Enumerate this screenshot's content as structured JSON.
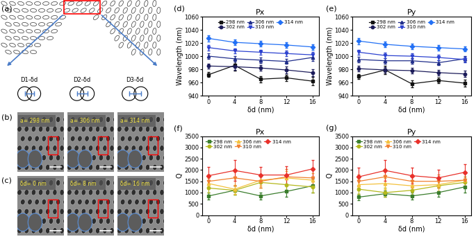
{
  "chart_data": [
    {
      "type": "line",
      "panel_label": "(d)",
      "title": "Px",
      "x_label": "δd (nm)",
      "y_label": "Wavelength (nm)",
      "x": [
        0,
        4,
        8,
        12,
        16
      ],
      "xlim": [
        -1,
        17
      ],
      "xticks": [
        0,
        4,
        8,
        12,
        16
      ],
      "ylim": [
        940,
        1060
      ],
      "yticks": [
        940,
        960,
        980,
        1000,
        1020,
        1040,
        1060
      ],
      "legend": "upper center",
      "grid": false,
      "series": [
        {
          "name": "298 nm",
          "color": "#111111",
          "marker": "square",
          "values": [
            972,
            986,
            965,
            967,
            962
          ],
          "errors": [
            4,
            8,
            5,
            5,
            6
          ]
        },
        {
          "name": "302 nm",
          "color": "#1c1c5a",
          "marker": "circle",
          "values": [
            985,
            984,
            982,
            979,
            975
          ],
          "errors": [
            4,
            5,
            4,
            5,
            5
          ]
        },
        {
          "name": "306 nm",
          "color": "#1f2d8a",
          "marker": "triangle_up",
          "values": [
            1000,
            996,
            994,
            992,
            998
          ],
          "errors": [
            4,
            4,
            4,
            4,
            5
          ]
        },
        {
          "name": "310 nm",
          "color": "#2c42d0",
          "marker": "triangle_down",
          "values": [
            1013,
            1008,
            1006,
            1004,
            1002
          ],
          "errors": [
            4,
            4,
            4,
            4,
            4
          ]
        },
        {
          "name": "314 nm",
          "color": "#2270f5",
          "marker": "diamond",
          "values": [
            1027,
            1021,
            1019,
            1017,
            1014
          ],
          "errors": [
            5,
            4,
            4,
            4,
            4
          ]
        }
      ]
    },
    {
      "type": "line",
      "panel_label": "(e)",
      "title": "Py",
      "x_label": "δd (nm)",
      "y_label": "Wavelength (nm)",
      "x": [
        0,
        4,
        8,
        12,
        16
      ],
      "xlim": [
        -1,
        17
      ],
      "xticks": [
        0,
        4,
        8,
        12,
        16
      ],
      "ylim": [
        940,
        1060
      ],
      "yticks": [
        940,
        960,
        980,
        1000,
        1020,
        1040,
        1060
      ],
      "legend": "upper center",
      "grid": false,
      "series": [
        {
          "name": "298 nm",
          "color": "#111111",
          "marker": "square",
          "values": [
            969,
            979,
            958,
            963,
            959
          ],
          "errors": [
            4,
            6,
            5,
            4,
            5
          ]
        },
        {
          "name": "302 nm",
          "color": "#1c1c5a",
          "marker": "circle",
          "values": [
            981,
            979,
            978,
            975,
            973
          ],
          "errors": [
            4,
            4,
            4,
            4,
            5
          ]
        },
        {
          "name": "306 nm",
          "color": "#1f2d8a",
          "marker": "triangle_up",
          "values": [
            995,
            993,
            993,
            990,
            996
          ],
          "errors": [
            4,
            4,
            4,
            4,
            4
          ]
        },
        {
          "name": "310 nm",
          "color": "#2c42d0",
          "marker": "triangle_down",
          "values": [
            1006,
            1001,
            1000,
            998,
            995
          ],
          "errors": [
            4,
            4,
            4,
            4,
            4
          ]
        },
        {
          "name": "314 nm",
          "color": "#2270f5",
          "marker": "diamond",
          "values": [
            1023,
            1018,
            1015,
            1013,
            1011
          ],
          "errors": [
            5,
            4,
            4,
            4,
            4
          ]
        }
      ]
    },
    {
      "type": "line",
      "panel_label": "(f)",
      "title": "Px",
      "x_label": "δd (nm)",
      "y_label": "Q",
      "x": [
        0,
        4,
        8,
        12,
        16
      ],
      "xlim": [
        -1,
        17
      ],
      "xticks": [
        0,
        4,
        8,
        12,
        16
      ],
      "ylim": [
        0,
        3500
      ],
      "yticks": [
        0,
        500,
        1000,
        1500,
        2000,
        2500,
        3000,
        3500
      ],
      "legend": "upper left",
      "grid": false,
      "series": [
        {
          "name": "298 nm",
          "color": "#3a7d2c",
          "marker": "square",
          "values": [
            850,
            1100,
            850,
            1050,
            1300
          ],
          "errors": [
            150,
            200,
            150,
            250,
            300
          ]
        },
        {
          "name": "302 nm",
          "color": "#b4b81c",
          "marker": "circle",
          "values": [
            1200,
            1100,
            1450,
            1350,
            1250
          ],
          "errors": [
            200,
            200,
            250,
            250,
            250
          ]
        },
        {
          "name": "306 nm",
          "color": "#f3c13c",
          "marker": "triangle_up",
          "values": [
            1400,
            1150,
            1550,
            1650,
            1550
          ],
          "errors": [
            250,
            200,
            250,
            300,
            300
          ]
        },
        {
          "name": "310 nm",
          "color": "#f08030",
          "marker": "triangle_down",
          "values": [
            1500,
            1650,
            1500,
            1700,
            1650
          ],
          "errors": [
            300,
            350,
            300,
            350,
            350
          ]
        },
        {
          "name": "314 nm",
          "color": "#e8302a",
          "marker": "diamond",
          "values": [
            1750,
            1980,
            1780,
            1780,
            2050
          ],
          "errors": [
            400,
            450,
            350,
            400,
            400
          ]
        }
      ]
    },
    {
      "type": "line",
      "panel_label": "(g)",
      "title": "Py",
      "x_label": "δd (nm)",
      "y_label": "Q",
      "x": [
        0,
        4,
        8,
        12,
        16
      ],
      "xlim": [
        -1,
        17
      ],
      "xticks": [
        0,
        4,
        8,
        12,
        16
      ],
      "ylim": [
        0,
        3500
      ],
      "yticks": [
        0,
        500,
        1000,
        1500,
        2000,
        2500,
        3000,
        3500
      ],
      "legend": "upper left",
      "grid": false,
      "series": [
        {
          "name": "298 nm",
          "color": "#3a7d2c",
          "marker": "square",
          "values": [
            800,
            950,
            850,
            1000,
            1250
          ],
          "errors": [
            150,
            150,
            150,
            200,
            250
          ]
        },
        {
          "name": "302 nm",
          "color": "#b4b81c",
          "marker": "circle",
          "values": [
            1150,
            1000,
            1100,
            1300,
            1450
          ],
          "errors": [
            200,
            200,
            200,
            250,
            250
          ]
        },
        {
          "name": "306 nm",
          "color": "#f3c13c",
          "marker": "triangle_up",
          "values": [
            1350,
            1400,
            1300,
            1350,
            1550
          ],
          "errors": [
            250,
            250,
            250,
            300,
            300
          ]
        },
        {
          "name": "310 nm",
          "color": "#f08030",
          "marker": "triangle_down",
          "values": [
            1500,
            1700,
            1500,
            1500,
            1550
          ],
          "errors": [
            300,
            350,
            300,
            300,
            300
          ]
        },
        {
          "name": "314 nm",
          "color": "#e8302a",
          "marker": "diamond",
          "values": [
            1700,
            1980,
            1750,
            1650,
            1900
          ],
          "errors": [
            400,
            450,
            350,
            350,
            350
          ]
        }
      ]
    }
  ],
  "images": {
    "a": {
      "panel_label": "(a)",
      "labels": [
        "D1-δd",
        "D2-δd",
        "D3-δd"
      ]
    },
    "b": {
      "panel_label": "(b)",
      "labels": [
        "a= 298 nm",
        "a= 306 nm",
        "a= 314 nm"
      ]
    },
    "c": {
      "panel_label": "(c)",
      "labels": [
        "δd= 0 nm",
        "δd= 8 nm",
        "δd= 16 nm"
      ]
    }
  }
}
